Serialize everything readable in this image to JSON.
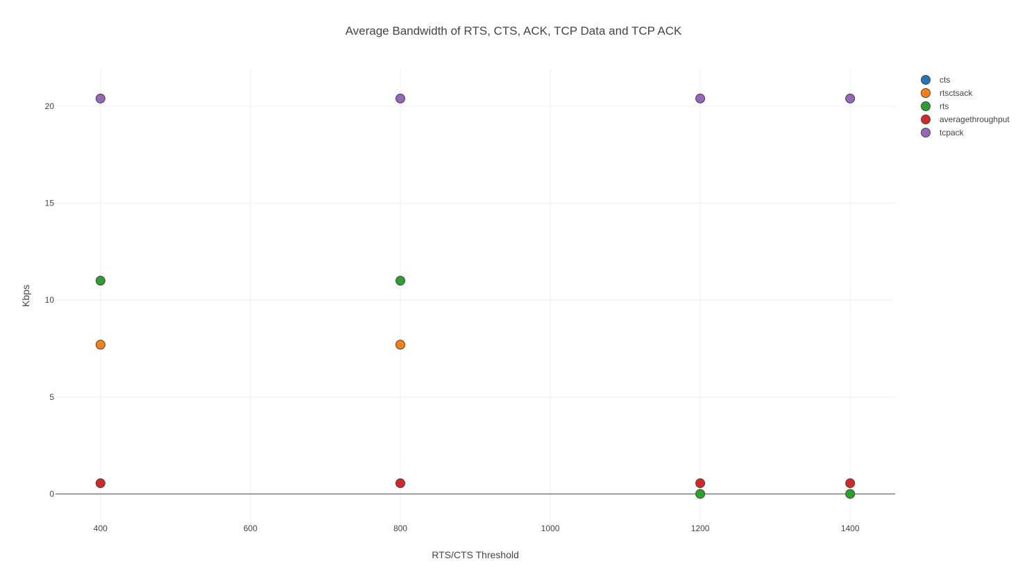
{
  "chart_data": {
    "type": "scatter",
    "title": "Average Bandwidth of RTS, CTS, ACK, TCP Data and TCP ACK",
    "xlabel": "RTS/CTS Threshold",
    "ylabel": "Kbps",
    "xlim": [
      340,
      1460
    ],
    "ylim": [
      -1.6,
      21.9
    ],
    "xticks": [
      400,
      600,
      800,
      1000,
      1200,
      1400
    ],
    "yticks": [
      0,
      5,
      10,
      15,
      20
    ],
    "grid": true,
    "legend_position": "top-right",
    "series": [
      {
        "name": "cts",
        "color": "#1f77b4",
        "x": [],
        "y": []
      },
      {
        "name": "rtsctsack",
        "color": "#ff7f0e",
        "x": [
          400,
          800
        ],
        "y": [
          7.7,
          7.7
        ]
      },
      {
        "name": "rts",
        "color": "#2ca02c",
        "x": [
          400,
          800,
          1200,
          1400
        ],
        "y": [
          11.0,
          11.0,
          0.0,
          0.0
        ]
      },
      {
        "name": "averagethroughput",
        "color": "#d62728",
        "x": [
          400,
          800,
          1200,
          1400
        ],
        "y": [
          0.55,
          0.55,
          0.55,
          0.55
        ]
      },
      {
        "name": "tcpack",
        "color": "#9467bd",
        "x": [
          400,
          800,
          1200,
          1400
        ],
        "y": [
          20.4,
          20.4,
          20.4,
          20.4
        ]
      }
    ]
  }
}
